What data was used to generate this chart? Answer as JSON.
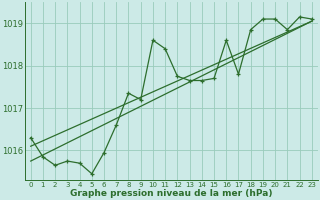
{
  "title": "Graphe pression niveau de la mer (hPa)",
  "xlabel_values": [
    0,
    1,
    2,
    3,
    4,
    5,
    6,
    7,
    8,
    9,
    10,
    11,
    12,
    13,
    14,
    15,
    16,
    17,
    18,
    19,
    20,
    21,
    22,
    23
  ],
  "yticks": [
    1016,
    1017,
    1018,
    1019
  ],
  "ylim": [
    1015.3,
    1019.5
  ],
  "xlim": [
    -0.5,
    23.5
  ],
  "bg_color": "#cceae7",
  "grid_color": "#99ccbb",
  "line_color": "#2d6e2d",
  "series1": [
    1016.3,
    1015.85,
    1015.65,
    1015.75,
    1015.7,
    1015.45,
    1015.95,
    1016.6,
    1017.35,
    1017.2,
    1018.6,
    1018.4,
    1017.75,
    1017.65,
    1017.65,
    1017.7,
    1018.6,
    1017.8,
    1018.85,
    1019.1,
    1019.1,
    1018.85,
    1019.15,
    1019.1
  ],
  "trend1_x": [
    0,
    23
  ],
  "trend1_y": [
    1015.75,
    1019.05
  ],
  "trend2_x": [
    0,
    23
  ],
  "trend2_y": [
    1016.1,
    1019.05
  ]
}
